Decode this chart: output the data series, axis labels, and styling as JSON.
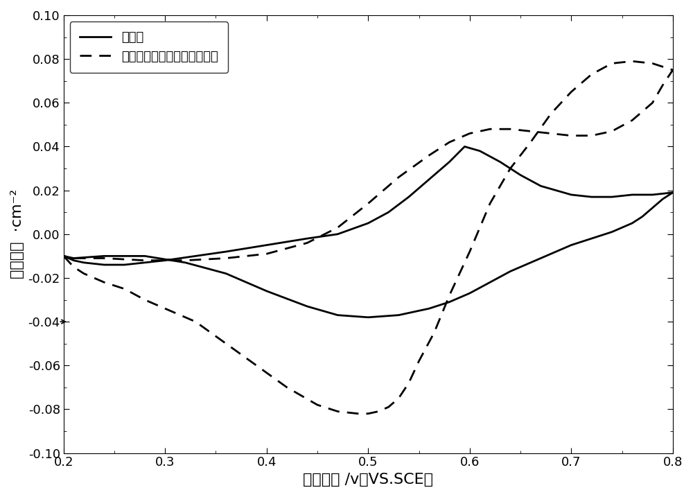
{
  "title": "",
  "xlabel": "电极电位 ∕v（VS.SCE）",
  "ylabel": "电流密度  ·cm⁻²",
  "xlim": [
    0.2,
    0.8
  ],
  "ylim": [
    -0.1,
    0.1
  ],
  "xticks": [
    0.2,
    0.3,
    0.4,
    0.5,
    0.6,
    0.7,
    0.8
  ],
  "yticks": [
    -0.1,
    -0.08,
    -0.06,
    -0.04,
    -0.02,
    0.0,
    0.02,
    0.04,
    0.06,
    0.08,
    0.1
  ],
  "legend1": "石垒氪",
  "legend2": "微波处理石垒氪后负载石垒烯",
  "solid_color": "#000000",
  "dashed_color": "#000000",
  "background_color": "#ffffff",
  "solid_x": [
    0.2,
    0.21,
    0.22,
    0.24,
    0.26,
    0.28,
    0.3,
    0.33,
    0.36,
    0.4,
    0.44,
    0.47,
    0.5,
    0.52,
    0.54,
    0.56,
    0.58,
    0.595,
    0.61,
    0.63,
    0.65,
    0.67,
    0.7,
    0.72,
    0.74,
    0.76,
    0.78,
    0.8,
    0.8,
    0.79,
    0.78,
    0.77,
    0.76,
    0.74,
    0.72,
    0.7,
    0.68,
    0.66,
    0.64,
    0.62,
    0.6,
    0.58,
    0.56,
    0.53,
    0.5,
    0.47,
    0.44,
    0.4,
    0.36,
    0.32,
    0.28,
    0.24,
    0.21,
    0.2
  ],
  "solid_y": [
    -0.01,
    -0.012,
    -0.013,
    -0.014,
    -0.014,
    -0.013,
    -0.012,
    -0.01,
    -0.008,
    -0.005,
    -0.002,
    0.0,
    0.005,
    0.01,
    0.017,
    0.025,
    0.033,
    0.04,
    0.038,
    0.033,
    0.027,
    0.022,
    0.018,
    0.017,
    0.017,
    0.018,
    0.018,
    0.019,
    0.019,
    0.016,
    0.012,
    0.008,
    0.005,
    0.001,
    -0.002,
    -0.005,
    -0.009,
    -0.013,
    -0.017,
    -0.022,
    -0.027,
    -0.031,
    -0.034,
    -0.037,
    -0.038,
    -0.037,
    -0.033,
    -0.026,
    -0.018,
    -0.013,
    -0.01,
    -0.01,
    -0.011,
    -0.01
  ],
  "dashed_x": [
    0.2,
    0.21,
    0.22,
    0.24,
    0.26,
    0.28,
    0.3,
    0.33,
    0.36,
    0.39,
    0.42,
    0.45,
    0.47,
    0.49,
    0.5,
    0.51,
    0.52,
    0.53,
    0.54,
    0.55,
    0.565,
    0.58,
    0.6,
    0.62,
    0.64,
    0.66,
    0.68,
    0.7,
    0.72,
    0.74,
    0.76,
    0.78,
    0.8,
    0.8,
    0.79,
    0.78,
    0.76,
    0.74,
    0.72,
    0.7,
    0.68,
    0.66,
    0.64,
    0.62,
    0.6,
    0.58,
    0.56,
    0.53,
    0.5,
    0.47,
    0.44,
    0.4,
    0.36,
    0.32,
    0.28,
    0.24,
    0.21,
    0.2
  ],
  "dashed_y": [
    -0.01,
    -0.015,
    -0.018,
    -0.022,
    -0.025,
    -0.03,
    -0.034,
    -0.04,
    -0.05,
    -0.06,
    -0.07,
    -0.078,
    -0.081,
    -0.082,
    -0.082,
    -0.081,
    -0.079,
    -0.075,
    -0.068,
    -0.058,
    -0.045,
    -0.028,
    -0.008,
    0.014,
    0.03,
    0.042,
    0.055,
    0.065,
    0.073,
    0.078,
    0.079,
    0.078,
    0.075,
    0.075,
    0.068,
    0.06,
    0.052,
    0.047,
    0.045,
    0.045,
    0.046,
    0.047,
    0.048,
    0.048,
    0.046,
    0.042,
    0.036,
    0.026,
    0.014,
    0.003,
    -0.004,
    -0.009,
    -0.011,
    -0.012,
    -0.012,
    -0.011,
    -0.011,
    -0.01
  ],
  "linewidth": 2.0,
  "fontsize_labels": 16,
  "fontsize_ticks": 13,
  "fontsize_legend": 13
}
